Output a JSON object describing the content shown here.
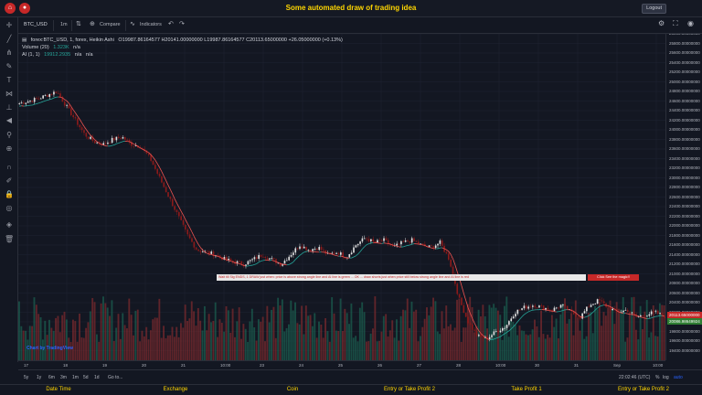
{
  "header": {
    "title": "Some automated draw of trading idea",
    "logout_label": "Logout"
  },
  "toolbar": {
    "symbol": "BTC_USD",
    "interval": "1m",
    "compare_label": "Compare",
    "indicators_label": "Indicators"
  },
  "legend": {
    "main_title": "forex:BTC_USD, 1, forex, Heikin Ashi",
    "ohlc": "O19987.86164577  H20141.00000000  L19987.86164577  C20113.65000000  +26.05000000 (+0.13%)",
    "volume_label": "Volume (20)",
    "volume_value": "1.323K",
    "volume_na": "n/a",
    "ai_label": "AI (1, 1)",
    "ai_value": "19912.2935",
    "ai_na1": "n/a",
    "ai_na2": "n/a"
  },
  "chart_data": {
    "type": "candlestick",
    "chart_style": "Heikin Ashi",
    "symbol": "forex:BTC_USD",
    "interval": "1",
    "y_range": [
      19200,
      26000
    ],
    "price_ticks": [
      26000,
      25800,
      25600,
      25400,
      25200,
      25000,
      24800,
      24600,
      24400,
      24200,
      24000,
      23800,
      23600,
      23400,
      23200,
      23000,
      22800,
      22600,
      22400,
      22200,
      22000,
      21800,
      21600,
      21400,
      21200,
      21000,
      20800,
      20600,
      20400,
      20200,
      20000,
      19800,
      19600,
      19400
    ],
    "x_labels": [
      "17",
      "18",
      "19",
      "20",
      "21",
      "10:00",
      "23",
      "24",
      "25",
      "26",
      "27",
      "28",
      "10:00",
      "30",
      "31",
      "Sep",
      "10:00"
    ],
    "price_path": [
      [
        0,
        24550
      ],
      [
        2,
        24650
      ],
      [
        4,
        24800
      ],
      [
        5,
        24500
      ],
      [
        6,
        24200
      ],
      [
        7,
        23900
      ],
      [
        8,
        23750
      ],
      [
        9,
        23700
      ],
      [
        10,
        23800
      ],
      [
        11,
        23850
      ],
      [
        12,
        23700
      ],
      [
        13,
        23650
      ],
      [
        14,
        23400
      ],
      [
        15,
        23000
      ],
      [
        16,
        22600
      ],
      [
        17,
        22200
      ],
      [
        18,
        21800
      ],
      [
        19,
        21500
      ],
      [
        20,
        21450
      ],
      [
        21,
        21400
      ],
      [
        22,
        21300
      ],
      [
        23,
        21250
      ],
      [
        24,
        21200
      ],
      [
        25,
        21300
      ],
      [
        26,
        21400
      ],
      [
        27,
        21300
      ],
      [
        28,
        21200
      ],
      [
        29,
        21400
      ],
      [
        30,
        21600
      ],
      [
        31,
        21500
      ],
      [
        32,
        21550
      ],
      [
        33,
        21400
      ],
      [
        34,
        21450
      ],
      [
        35,
        21350
      ],
      [
        36,
        21600
      ],
      [
        37,
        21750
      ],
      [
        38,
        21650
      ],
      [
        39,
        21700
      ],
      [
        40,
        21550
      ],
      [
        41,
        21650
      ],
      [
        42,
        21700
      ],
      [
        43,
        21600
      ],
      [
        44,
        21550
      ],
      [
        45,
        21650
      ],
      [
        46,
        21300
      ],
      [
        47,
        20500
      ],
      [
        48,
        20000
      ],
      [
        49,
        19700
      ],
      [
        50,
        19650
      ],
      [
        51,
        19800
      ],
      [
        52,
        19900
      ],
      [
        53,
        20200
      ],
      [
        54,
        20300
      ],
      [
        55,
        20350
      ],
      [
        56,
        20300
      ],
      [
        57,
        20250
      ],
      [
        58,
        20350
      ],
      [
        59,
        20200
      ],
      [
        60,
        20100
      ],
      [
        61,
        20350
      ],
      [
        62,
        20450
      ],
      [
        63,
        20300
      ],
      [
        64,
        20200
      ],
      [
        65,
        20250
      ],
      [
        66,
        20100
      ],
      [
        67,
        20150
      ],
      [
        68,
        20200
      ],
      [
        69,
        20113
      ]
    ],
    "last_price": "20113.65000000",
    "ai_price": "20086.98649924"
  },
  "signal": {
    "text": "Wait till Sig ENDS, 1 DRAW just when: price is above strong angle line and AI line is green ... OK ... draw shorts just when price still below strong angle line and AI line is red",
    "magic_button": "Click See the magic!!"
  },
  "watermark": "Chart by TradingView",
  "bottom": {
    "ranges": [
      "5y",
      "1y",
      "6m",
      "3m",
      "1m",
      "5d",
      "1d"
    ],
    "goto": "Go to...",
    "time": "22:02:46 (UTC)",
    "pct": "%",
    "log": "log",
    "auto": "auto"
  },
  "footer": {
    "tabs": [
      "Date Time",
      "Exchange",
      "Coin",
      "Entry or Take Profit 2",
      "Take Profit 1",
      "Entry or Take Profit 2"
    ]
  },
  "colors": {
    "bg": "#131722",
    "up": "#26a69a",
    "down": "#ef5350",
    "accent": "#ffd600",
    "grid": "#1f2433"
  }
}
